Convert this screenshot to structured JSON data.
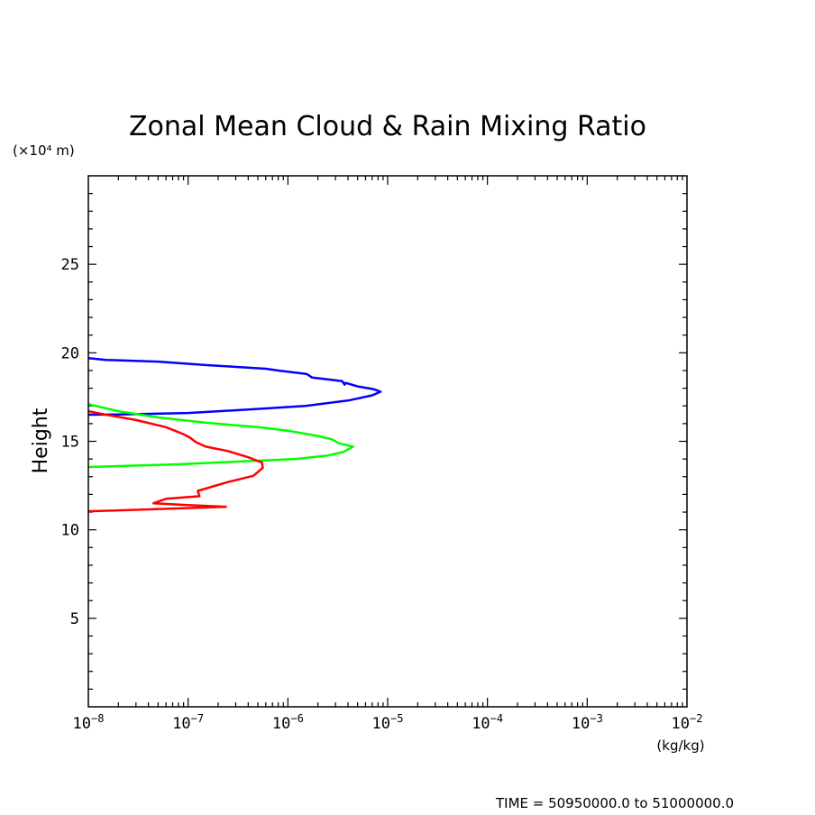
{
  "chart_data": {
    "type": "line",
    "title": "Zonal Mean Cloud & Rain Mixing Ratio",
    "ylabel": "Height",
    "y_units": "(×10⁴ m)",
    "x_units": "(kg/kg)",
    "footer": "TIME = 50950000.0 to 51000000.0",
    "x_scale": "log",
    "xlim": [
      1e-08,
      0.01
    ],
    "ylim": [
      0,
      30
    ],
    "x_ticks": [
      {
        "base": "10",
        "exp": "−8"
      },
      {
        "base": "10",
        "exp": "−7"
      },
      {
        "base": "10",
        "exp": "−6"
      },
      {
        "base": "10",
        "exp": "−5"
      },
      {
        "base": "10",
        "exp": "−4"
      },
      {
        "base": "10",
        "exp": "−3"
      },
      {
        "base": "10",
        "exp": "−2"
      }
    ],
    "y_ticks": [
      "5",
      "10",
      "15",
      "20",
      "25"
    ],
    "series": [
      {
        "color": "#0000ff",
        "points": [
          [
            1e-08,
            19.7
          ],
          [
            1.5e-08,
            19.6
          ],
          [
            5e-08,
            19.5
          ],
          [
            1.6e-07,
            19.3
          ],
          [
            6e-07,
            19.1
          ],
          [
            8e-07,
            19.0
          ],
          [
            1.55e-06,
            18.8
          ],
          [
            1.75e-06,
            18.6
          ],
          [
            3.5e-06,
            18.4
          ],
          [
            3.7e-06,
            18.2
          ],
          [
            3.8e-06,
            18.3
          ],
          [
            5e-06,
            18.1
          ],
          [
            7.2e-06,
            17.95
          ],
          [
            8.5e-06,
            17.8
          ],
          [
            7e-06,
            17.6
          ],
          [
            4e-06,
            17.3
          ],
          [
            1.5e-06,
            17.0
          ],
          [
            4e-07,
            16.8
          ],
          [
            1e-07,
            16.6
          ],
          [
            2e-08,
            16.52
          ],
          [
            1e-08,
            16.5
          ]
        ]
      },
      {
        "color": "#00ff00",
        "points": [
          [
            1e-08,
            17.1
          ],
          [
            2e-08,
            16.7
          ],
          [
            5e-08,
            16.35
          ],
          [
            1.5e-07,
            16.05
          ],
          [
            5e-07,
            15.8
          ],
          [
            1e-06,
            15.6
          ],
          [
            2e-06,
            15.3
          ],
          [
            2.8e-06,
            15.1
          ],
          [
            3.2e-06,
            14.9
          ],
          [
            4.5e-06,
            14.7
          ],
          [
            3.6e-06,
            14.4
          ],
          [
            2.5e-06,
            14.2
          ],
          [
            1.2e-06,
            14.0
          ],
          [
            3e-07,
            13.85
          ],
          [
            8e-08,
            13.7
          ],
          [
            2e-08,
            13.6
          ],
          [
            1e-08,
            13.55
          ]
        ]
      },
      {
        "color": "#ff0000",
        "points": [
          [
            1e-08,
            16.7
          ],
          [
            1.5e-08,
            16.5
          ],
          [
            3e-08,
            16.2
          ],
          [
            6e-08,
            15.8
          ],
          [
            9e-08,
            15.4
          ],
          [
            1.05e-07,
            15.2
          ],
          [
            1.2e-07,
            14.95
          ],
          [
            1.5e-07,
            14.7
          ],
          [
            2.5e-07,
            14.45
          ],
          [
            4e-07,
            14.1
          ],
          [
            5.5e-07,
            13.8
          ],
          [
            5.6e-07,
            13.5
          ],
          [
            4.5e-07,
            13.05
          ],
          [
            2.5e-07,
            12.7
          ],
          [
            1.25e-07,
            12.2
          ],
          [
            1.3e-07,
            11.9
          ],
          [
            6e-08,
            11.75
          ],
          [
            4.5e-08,
            11.5
          ],
          [
            1e-07,
            11.4
          ],
          [
            2.4e-07,
            11.3
          ],
          [
            2e-08,
            11.1
          ],
          [
            1e-08,
            11.05
          ]
        ]
      }
    ]
  }
}
